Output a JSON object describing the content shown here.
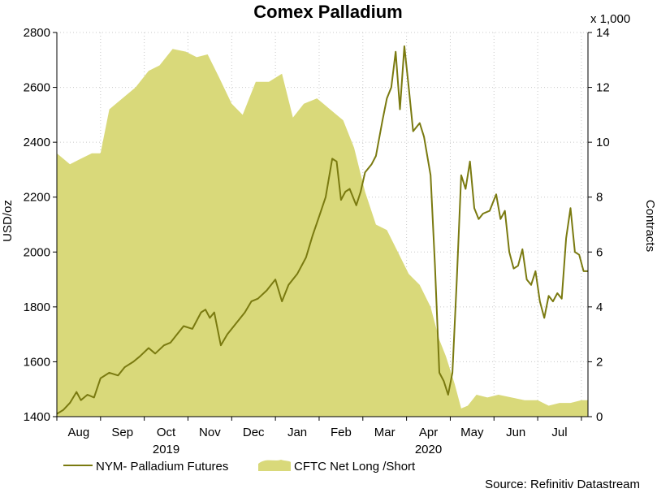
{
  "chart_data": {
    "type": "area+line",
    "title": "Comex Palladium",
    "ylabel_left": "USD/oz",
    "ylabel_right": "Contracts",
    "right_multiplier": "x 1,000",
    "left_axis": {
      "min": 1400,
      "max": 2800,
      "ticks": [
        1400,
        1600,
        1800,
        2000,
        2200,
        2400,
        2600,
        2800
      ]
    },
    "right_axis": {
      "min": 0,
      "max": 14,
      "ticks": [
        0,
        2,
        4,
        6,
        8,
        10,
        12,
        14
      ]
    },
    "x_range": [
      0,
      12.15
    ],
    "month_labels": [
      {
        "label": "Aug",
        "pos": 0.5
      },
      {
        "label": "Sep",
        "pos": 1.5
      },
      {
        "label": "Oct",
        "pos": 2.5
      },
      {
        "label": "Nov",
        "pos": 3.5
      },
      {
        "label": "Dec",
        "pos": 4.5
      },
      {
        "label": "Jan",
        "pos": 5.5
      },
      {
        "label": "Feb",
        "pos": 6.5
      },
      {
        "label": "Mar",
        "pos": 7.5
      },
      {
        "label": "Apr",
        "pos": 8.5
      },
      {
        "label": "May",
        "pos": 9.5
      },
      {
        "label": "Jun",
        "pos": 10.5
      },
      {
        "label": "Jul",
        "pos": 11.5
      }
    ],
    "year_labels": [
      {
        "label": "2019",
        "pos": 2.5
      },
      {
        "label": "2020",
        "pos": 8.5
      }
    ],
    "grid": true,
    "legend": {
      "placement": "bottom",
      "line_label": "NYM- Palladium Futures",
      "area_label": "CFTC Net Long /Short"
    },
    "colors": {
      "line": "#7a7a10",
      "area": "#d9d97a"
    },
    "source": "Source: Refinitiv Datastream",
    "series": [
      {
        "name": "NYM- Palladium Futures",
        "axis": "left",
        "type": "line",
        "points": [
          [
            0,
            1410
          ],
          [
            0.15,
            1425
          ],
          [
            0.3,
            1450
          ],
          [
            0.45,
            1490
          ],
          [
            0.55,
            1460
          ],
          [
            0.7,
            1480
          ],
          [
            0.85,
            1470
          ],
          [
            1.0,
            1540
          ],
          [
            1.2,
            1560
          ],
          [
            1.4,
            1550
          ],
          [
            1.55,
            1580
          ],
          [
            1.75,
            1600
          ],
          [
            1.9,
            1620
          ],
          [
            2.1,
            1650
          ],
          [
            2.25,
            1630
          ],
          [
            2.45,
            1660
          ],
          [
            2.6,
            1670
          ],
          [
            2.75,
            1700
          ],
          [
            2.9,
            1730
          ],
          [
            3.1,
            1720
          ],
          [
            3.3,
            1780
          ],
          [
            3.4,
            1790
          ],
          [
            3.5,
            1760
          ],
          [
            3.6,
            1780
          ],
          [
            3.75,
            1660
          ],
          [
            3.9,
            1700
          ],
          [
            4.1,
            1740
          ],
          [
            4.3,
            1780
          ],
          [
            4.45,
            1820
          ],
          [
            4.6,
            1830
          ],
          [
            4.8,
            1860
          ],
          [
            5.0,
            1900
          ],
          [
            5.15,
            1820
          ],
          [
            5.3,
            1880
          ],
          [
            5.5,
            1920
          ],
          [
            5.7,
            1980
          ],
          [
            5.85,
            2060
          ],
          [
            6.0,
            2130
          ],
          [
            6.15,
            2200
          ],
          [
            6.3,
            2340
          ],
          [
            6.4,
            2330
          ],
          [
            6.5,
            2190
          ],
          [
            6.6,
            2220
          ],
          [
            6.7,
            2230
          ],
          [
            6.85,
            2170
          ],
          [
            6.95,
            2220
          ],
          [
            7.05,
            2290
          ],
          [
            7.2,
            2320
          ],
          [
            7.3,
            2350
          ],
          [
            7.45,
            2480
          ],
          [
            7.55,
            2560
          ],
          [
            7.65,
            2600
          ],
          [
            7.75,
            2730
          ],
          [
            7.85,
            2520
          ],
          [
            7.95,
            2750
          ],
          [
            8.05,
            2600
          ],
          [
            8.15,
            2440
          ],
          [
            8.3,
            2470
          ],
          [
            8.4,
            2420
          ],
          [
            8.55,
            2280
          ],
          [
            8.65,
            1950
          ],
          [
            8.75,
            1560
          ],
          [
            8.85,
            1530
          ],
          [
            8.95,
            1480
          ],
          [
            9.05,
            1560
          ],
          [
            9.15,
            1900
          ],
          [
            9.25,
            2280
          ],
          [
            9.35,
            2230
          ],
          [
            9.45,
            2330
          ],
          [
            9.55,
            2160
          ],
          [
            9.65,
            2120
          ],
          [
            9.75,
            2140
          ],
          [
            9.9,
            2150
          ],
          [
            10.05,
            2210
          ],
          [
            10.15,
            2120
          ],
          [
            10.25,
            2150
          ],
          [
            10.35,
            2000
          ],
          [
            10.45,
            1940
          ],
          [
            10.55,
            1950
          ],
          [
            10.65,
            2010
          ],
          [
            10.75,
            1900
          ],
          [
            10.85,
            1880
          ],
          [
            10.95,
            1930
          ],
          [
            11.05,
            1820
          ],
          [
            11.15,
            1760
          ],
          [
            11.25,
            1840
          ],
          [
            11.35,
            1820
          ],
          [
            11.45,
            1850
          ],
          [
            11.55,
            1830
          ],
          [
            11.65,
            2050
          ],
          [
            11.75,
            2160
          ],
          [
            11.85,
            2000
          ],
          [
            11.95,
            1990
          ],
          [
            12.05,
            1930
          ],
          [
            12.15,
            1930
          ]
        ]
      },
      {
        "name": "CFTC Net Long /Short",
        "axis": "right",
        "type": "area",
        "points": [
          [
            0,
            9.6
          ],
          [
            0.3,
            9.2
          ],
          [
            0.55,
            9.4
          ],
          [
            0.8,
            9.6
          ],
          [
            1.0,
            9.6
          ],
          [
            1.2,
            11.2
          ],
          [
            1.5,
            11.6
          ],
          [
            1.8,
            12.0
          ],
          [
            2.1,
            12.6
          ],
          [
            2.35,
            12.8
          ],
          [
            2.65,
            13.4
          ],
          [
            2.95,
            13.3
          ],
          [
            3.2,
            13.1
          ],
          [
            3.45,
            13.2
          ],
          [
            3.7,
            12.4
          ],
          [
            4.0,
            11.4
          ],
          [
            4.25,
            11.0
          ],
          [
            4.55,
            12.2
          ],
          [
            4.85,
            12.2
          ],
          [
            5.15,
            12.5
          ],
          [
            5.4,
            10.9
          ],
          [
            5.65,
            11.4
          ],
          [
            5.95,
            11.6
          ],
          [
            6.25,
            11.2
          ],
          [
            6.55,
            10.8
          ],
          [
            6.8,
            9.8
          ],
          [
            7.05,
            8.2
          ],
          [
            7.3,
            7.0
          ],
          [
            7.55,
            6.8
          ],
          [
            7.8,
            6.0
          ],
          [
            8.05,
            5.2
          ],
          [
            8.3,
            4.8
          ],
          [
            8.55,
            4.0
          ],
          [
            8.75,
            2.8
          ],
          [
            8.9,
            2.2
          ],
          [
            9.1,
            1.2
          ],
          [
            9.25,
            0.3
          ],
          [
            9.4,
            0.4
          ],
          [
            9.6,
            0.8
          ],
          [
            9.85,
            0.7
          ],
          [
            10.1,
            0.8
          ],
          [
            10.4,
            0.7
          ],
          [
            10.7,
            0.6
          ],
          [
            11.0,
            0.6
          ],
          [
            11.25,
            0.4
          ],
          [
            11.5,
            0.5
          ],
          [
            11.75,
            0.5
          ],
          [
            12.0,
            0.6
          ],
          [
            12.15,
            0.6
          ]
        ]
      }
    ]
  }
}
